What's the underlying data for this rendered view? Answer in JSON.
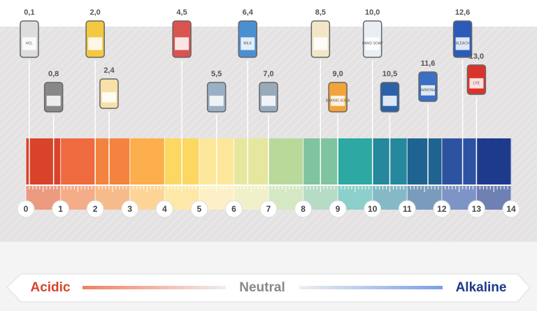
{
  "chart_data": {
    "type": "ph-scale",
    "values": [
      0.1,
      0.8,
      2.0,
      2.4,
      4.5,
      5.5,
      6.4,
      7.0,
      8.5,
      9.0,
      10.0,
      10.5,
      11.6,
      12.6,
      13.0
    ],
    "value_labels": [
      "0,1",
      "0,8",
      "2,0",
      "2,4",
      "4,5",
      "5,5",
      "6,4",
      "7,0",
      "8,5",
      "9,0",
      "10,0",
      "10,5",
      "11,6",
      "12,6",
      "13,0"
    ],
    "icon_labels": [
      "HCL",
      null,
      null,
      null,
      null,
      null,
      "MILK",
      null,
      null,
      "BAKING SODA",
      "HAND SOAP",
      null,
      "AMMONIA",
      "BLEACH",
      "LYE"
    ],
    "xlim": [
      0,
      14
    ],
    "xticks": [
      0,
      1,
      2,
      3,
      4,
      5,
      6,
      7,
      8,
      9,
      10,
      11,
      12,
      13,
      14
    ],
    "legend": {
      "left": "Acidic",
      "middle": "Neutral",
      "right": "Alkaline"
    }
  }
}
